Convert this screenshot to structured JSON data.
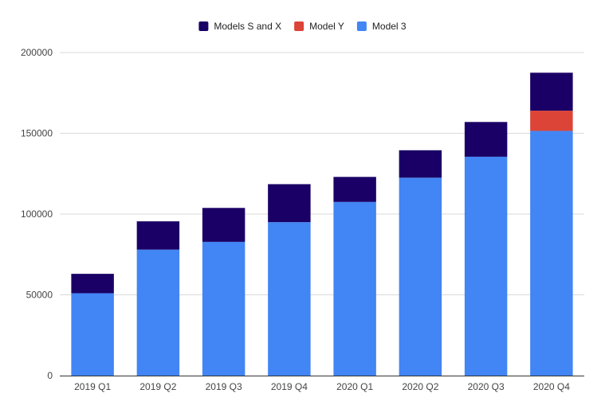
{
  "chart_data": {
    "type": "bar",
    "stacked": true,
    "title": "",
    "xlabel": "",
    "ylabel": "",
    "categories": [
      "2019 Q1",
      "2019 Q2",
      "2019 Q3",
      "2019 Q4",
      "2020 Q1",
      "2020 Q2",
      "2020 Q3",
      "2020 Q4"
    ],
    "ylim": [
      0,
      200000
    ],
    "yticks": [
      "0",
      "50000",
      "100000",
      "150000",
      "200000"
    ],
    "ytick_values": [
      0,
      50000,
      100000,
      150000,
      200000
    ],
    "grid": true,
    "legend_position": "top",
    "legend_order": [
      "Models S and X",
      "Model Y",
      "Model 3"
    ],
    "stack_order": [
      "Model 3",
      "Model Y",
      "Models S and X"
    ],
    "series": [
      {
        "name": "Model 3",
        "color": "#4285F4",
        "values": [
          51000,
          78000,
          82800,
          95000,
          107500,
          122500,
          135500,
          151500
        ]
      },
      {
        "name": "Model Y",
        "color": "#DB4437",
        "values": [
          0,
          0,
          0,
          0,
          0,
          0,
          0,
          12500
        ]
      },
      {
        "name": "Models S and X",
        "color": "#1A0066",
        "values": [
          12000,
          17500,
          21000,
          23500,
          15500,
          17000,
          21500,
          23500
        ]
      }
    ]
  }
}
